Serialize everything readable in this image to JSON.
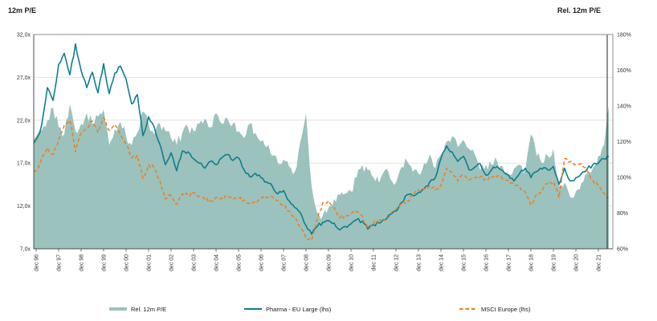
{
  "header": {
    "left_axis_title": "12m P/E",
    "right_axis_title": "Rel. 12m P/E"
  },
  "legend": {
    "items": [
      {
        "label": "Rel. 12m P/E",
        "style": "area",
        "color": "#9bc2bd"
      },
      {
        "label": "Pharma - EU Large (lhs)",
        "style": "line",
        "color": "#0f7e8d"
      },
      {
        "label": "MSCI Europe (lhs)",
        "style": "dash",
        "color": "#f07d1a"
      }
    ]
  },
  "chart_data": {
    "type": "area",
    "title": "",
    "xlabel": "",
    "left_axis": {
      "label": "12m P/E",
      "min": 7,
      "max": 32,
      "tick_values": [
        32,
        27,
        22,
        17,
        12,
        7
      ],
      "tick_labels": [
        "32,0x",
        "27,0x",
        "22,0x",
        "17,0x",
        "12,0x",
        "7,0x"
      ]
    },
    "right_axis": {
      "label": "Rel. 12m P/E",
      "min": 60,
      "max": 180,
      "tick_values": [
        180,
        160,
        140,
        120,
        100,
        80,
        60
      ],
      "tick_labels": [
        "180%",
        "160%",
        "140%",
        "120%",
        "100%",
        "80%",
        "60%"
      ]
    },
    "x_tick_labels": [
      "dec 96",
      "dec 97",
      "dec 98",
      "dec 99",
      "dec 00",
      "dec 01",
      "dec 02",
      "dec 03",
      "dec 04",
      "dec 05",
      "dec 06",
      "dec 07",
      "dec 08",
      "dec 09",
      "dec 10",
      "dec 11",
      "dec 12",
      "dec 13",
      "dec 14",
      "dec 15",
      "dec 16",
      "dec 17",
      "dec 18",
      "dec 19",
      "dec 20",
      "dec 21"
    ],
    "sampling": "quarterly from dec 1996; final extra point ~may 2022",
    "grid": "horizontal at left-axis ticks 27,22,17,12",
    "legend_position": "bottom",
    "series": [
      {
        "name": "Rel. 12m P/E",
        "axis": "right",
        "type": "area",
        "color": "#9bc2bd",
        "values": [
          121,
          126,
          132,
          139,
          128,
          124,
          141,
          126,
          130,
          136,
          130,
          134,
          138,
          118,
          127,
          131,
          123,
          118,
          125,
          137,
          130,
          124,
          130,
          126,
          122,
          118,
          125,
          128,
          126,
          130,
          133,
          128,
          136,
          130,
          133,
          130,
          126,
          122,
          130,
          125,
          120,
          117,
          112,
          108,
          110,
          106,
          103,
          120,
          136,
          95,
          80,
          79,
          83,
          88,
          90,
          91,
          92,
          100,
          107,
          104,
          100,
          97,
          104,
          99,
          97,
          106,
          109,
          103,
          102,
          108,
          113,
          105,
          113,
          120,
          123,
          117,
          121,
          116,
          113,
          104,
          107,
          107,
          109,
          106,
          102,
          105,
          107,
          104,
          124,
          112,
          108,
          112,
          116,
          95,
          97,
          89,
          92,
          97,
          102,
          105,
          112,
          118,
          140
        ]
      },
      {
        "name": "Pharma - EU Large (lhs)",
        "axis": "left",
        "type": "line",
        "color": "#0f7e8d",
        "values": [
          19.3,
          21.5,
          25.8,
          24.3,
          28.5,
          29.8,
          27.3,
          30.9,
          27.8,
          25.8,
          27.6,
          25.2,
          28.6,
          25.1,
          27.5,
          28.3,
          26.8,
          23.9,
          25.0,
          20.2,
          22.4,
          21.2,
          19.2,
          16.8,
          18.2,
          16.1,
          18.4,
          18.3,
          17.5,
          17.0,
          16.4,
          17.2,
          16.8,
          17.6,
          18.0,
          17.3,
          17.6,
          16.2,
          15.4,
          15.8,
          15.3,
          14.8,
          14.3,
          13.4,
          13.8,
          12.6,
          11.8,
          11.2,
          9.7,
          8.7,
          9.6,
          10.1,
          10.3,
          10.0,
          9.2,
          9.6,
          9.9,
          10.4,
          10.2,
          9.3,
          9.8,
          10.0,
          10.4,
          11.0,
          11.4,
          12.4,
          13.3,
          13.2,
          13.6,
          14.0,
          14.8,
          15.3,
          17.5,
          19.0,
          18.3,
          17.2,
          17.8,
          16.2,
          16.5,
          16.9,
          15.6,
          16.2,
          16.6,
          16.1,
          15.6,
          14.9,
          15.8,
          16.4,
          15.3,
          16.0,
          16.3,
          16.2,
          16.6,
          14.5,
          16.4,
          14.9,
          15.3,
          15.8,
          16.3,
          16.8,
          17.0,
          17.5,
          17.8
        ]
      },
      {
        "name": "MSCI Europe (lhs)",
        "axis": "left",
        "type": "dashed-line",
        "color": "#f07d1a",
        "values": [
          15.9,
          17.6,
          18.8,
          18.0,
          19.6,
          21.4,
          22.0,
          18.3,
          20.6,
          21.0,
          21.9,
          20.6,
          22.3,
          20.8,
          21.5,
          20.3,
          19.2,
          17.6,
          17.9,
          15.2,
          16.8,
          16.4,
          15.0,
          12.8,
          13.2,
          12.2,
          13.4,
          13.3,
          13.5,
          13.1,
          12.8,
          12.6,
          13.0,
          12.9,
          13.2,
          12.8,
          12.9,
          12.7,
          12.3,
          12.6,
          12.9,
          13.0,
          13.1,
          12.6,
          12.2,
          11.4,
          10.7,
          9.5,
          8.2,
          8.0,
          10.5,
          12.4,
          12.6,
          11.8,
          10.6,
          10.9,
          11.1,
          11.3,
          10.8,
          9.4,
          10.0,
          10.5,
          10.3,
          11.0,
          11.6,
          12.3,
          12.6,
          13.2,
          13.9,
          14.0,
          14.3,
          13.9,
          14.4,
          16.4,
          15.9,
          14.9,
          15.6,
          15.0,
          15.3,
          15.4,
          15.1,
          15.3,
          15.5,
          15.1,
          15.0,
          14.5,
          14.2,
          13.6,
          12.1,
          13.4,
          13.8,
          14.6,
          14.8,
          13.0,
          17.5,
          17.2,
          16.8,
          16.9,
          16.1,
          15.0,
          14.3,
          13.5,
          13.0
        ]
      }
    ],
    "colors": {
      "area_fill": "#9bc2bd",
      "pharma_line": "#0f7e8d",
      "msci_line": "#f07d1a",
      "grid": "#e3e3e3",
      "frame": "#8c8c8c",
      "axis_dark": "#4d4d4d",
      "end_marker": "#262626",
      "text": "#262626"
    }
  }
}
